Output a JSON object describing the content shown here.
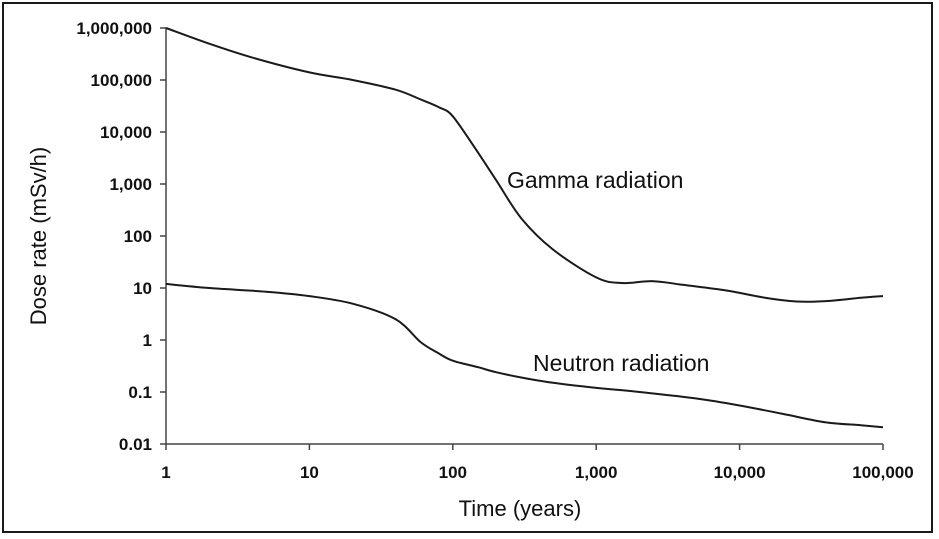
{
  "chart_data": {
    "type": "line",
    "title": "",
    "xlabel": "Time (years)",
    "ylabel": "Dose rate (mSv/h)",
    "xscale": "log",
    "yscale": "log",
    "xlim": [
      1,
      100000
    ],
    "ylim": [
      0.01,
      1000000
    ],
    "x_ticks": [
      1,
      10,
      100,
      1000,
      10000,
      100000
    ],
    "x_tick_labels": [
      "1",
      "10",
      "100",
      "1,000",
      "10,000",
      "100,000"
    ],
    "y_ticks": [
      0.01,
      0.1,
      1,
      10,
      100,
      1000,
      10000,
      100000,
      1000000
    ],
    "y_tick_labels": [
      "0.01",
      "0.1",
      "1",
      "10",
      "100",
      "1,000",
      "10,000",
      "100,000",
      "1,000,000"
    ],
    "grid": false,
    "series": [
      {
        "name": "Gamma radiation",
        "x": [
          1,
          2,
          4,
          10,
          20,
          40,
          60,
          80,
          100,
          150,
          200,
          300,
          500,
          1000,
          1500,
          2500,
          4000,
          8000,
          15000,
          25000,
          40000,
          70000,
          100000
        ],
        "y": [
          1000000,
          500000,
          270000,
          140000,
          100000,
          65000,
          42000,
          30000,
          20000,
          4000,
          1200,
          220,
          55,
          16,
          12.5,
          13.5,
          11.5,
          9,
          6.5,
          5.5,
          5.6,
          6.5,
          7
        ]
      },
      {
        "name": "Neutron radiation",
        "x": [
          1,
          2,
          5,
          10,
          20,
          40,
          60,
          80,
          100,
          150,
          200,
          300,
          500,
          1000,
          2000,
          5000,
          10000,
          20000,
          40000,
          70000,
          100000
        ],
        "y": [
          12,
          10,
          8.5,
          7,
          5,
          2.5,
          0.9,
          0.55,
          0.4,
          0.3,
          0.24,
          0.19,
          0.15,
          0.12,
          0.1,
          0.075,
          0.055,
          0.038,
          0.026,
          0.023,
          0.021
        ]
      }
    ]
  }
}
